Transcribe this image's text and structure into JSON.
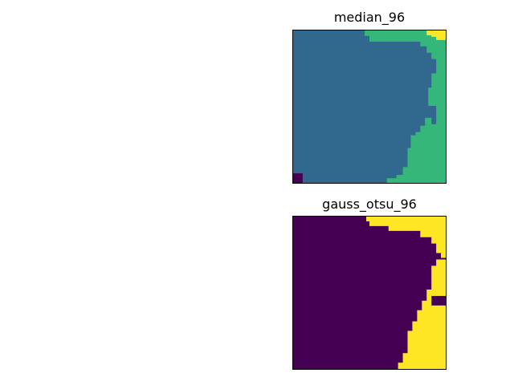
{
  "figure": {
    "panels": [
      {
        "title": "median_96",
        "colors": {
          "region_a": "#31688e",
          "region_b": "#35b779",
          "region_c": "#fde725",
          "region_d": "#440154"
        }
      },
      {
        "title": "gauss_otsu_96",
        "colors": {
          "region_a": "#440154",
          "region_b": "#fde725"
        }
      }
    ]
  }
}
